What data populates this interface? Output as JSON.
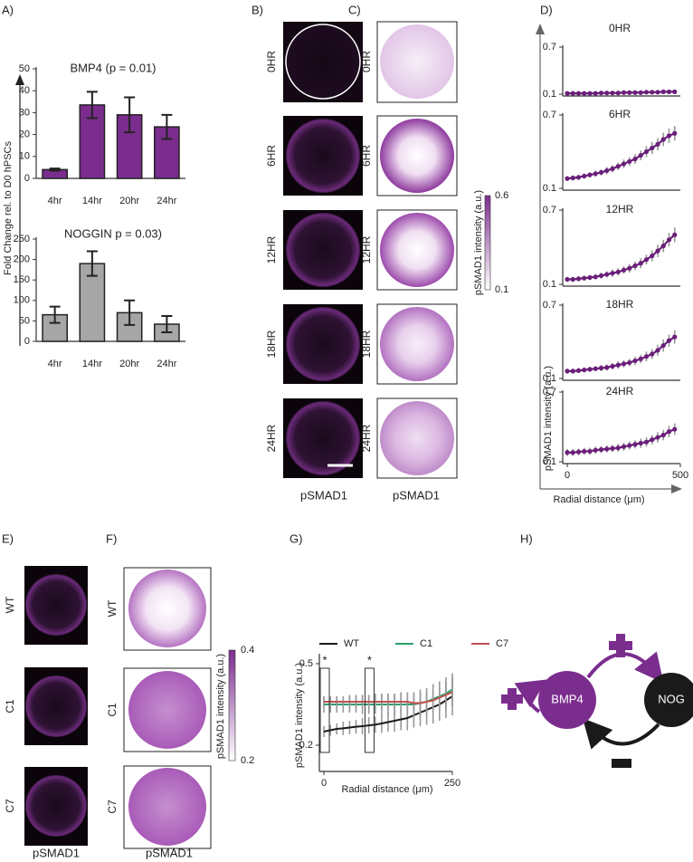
{
  "figure": {
    "panel_labels": [
      "A)",
      "B)",
      "C)",
      "D)",
      "E)",
      "F)",
      "G)",
      "H)"
    ],
    "panel_b": {
      "rows": [
        "0HR",
        "6HR",
        "12HR",
        "18HR",
        "24HR"
      ],
      "caption": "pSMAD1"
    },
    "panel_c": {
      "rows": [
        "0HR",
        "6HR",
        "12HR",
        "18HR",
        "24HR"
      ],
      "caption": "pSMAD1",
      "colorbar": {
        "label": "pSMAD1 intensity (a.u.)",
        "ticks": [
          0.6,
          0.1
        ]
      }
    },
    "panel_e": {
      "rows": [
        "WT",
        "C1",
        "C7"
      ],
      "caption": "pSMAD1"
    },
    "panel_f": {
      "rows": [
        "WT",
        "C1",
        "C7"
      ],
      "caption": "pSMAD1",
      "colorbar": {
        "label": "pSMAD1 intensity (a.u.)",
        "ticks": [
          0.4,
          0.2
        ]
      }
    },
    "panel_h": {
      "nodes": [
        "BMP4",
        "NOG"
      ]
    }
  },
  "chart_data": [
    {
      "type": "bar",
      "title": "BMP4 (p = 0.01)",
      "ylabel": "Fold Change rel. to D0 hPSCs",
      "categories": [
        "4hr",
        "14hr",
        "20hr",
        "24hr"
      ],
      "values": [
        4,
        33.5,
        29,
        23.5
      ],
      "errors": [
        0.5,
        6,
        8,
        5.5
      ],
      "color": "#7b2d8e",
      "ylim": [
        0,
        50
      ],
      "yticks": [
        0,
        10,
        20,
        30,
        40,
        50
      ]
    },
    {
      "type": "bar",
      "title": "NOGGIN p = 0.03)",
      "categories": [
        "4hr",
        "14hr",
        "20hr",
        "24hr"
      ],
      "values": [
        65,
        190,
        70,
        42
      ],
      "errors": [
        20,
        30,
        30,
        20
      ],
      "color": "#a6a6a6",
      "ylim": [
        0,
        250
      ],
      "yticks": [
        0,
        50,
        100,
        150,
        200,
        250
      ]
    },
    {
      "type": "line",
      "title": "0HR",
      "x": [
        0,
        25,
        50,
        75,
        100,
        125,
        150,
        175,
        200,
        225,
        250,
        275,
        300,
        325,
        350,
        375,
        400,
        425,
        450,
        475
      ],
      "xlim": [
        0,
        500
      ],
      "ylim": [
        0.1,
        0.7
      ],
      "yticks": [
        0.1,
        0.7
      ],
      "series": [
        {
          "color": "#6a1f7a",
          "values": [
            0.11,
            0.11,
            0.11,
            0.11,
            0.11,
            0.11,
            0.115,
            0.115,
            0.115,
            0.115,
            0.12,
            0.12,
            0.12,
            0.12,
            0.125,
            0.125,
            0.125,
            0.13,
            0.13,
            0.13
          ],
          "errors": [
            0.01,
            0.01,
            0.01,
            0.01,
            0.01,
            0.01,
            0.01,
            0.01,
            0.01,
            0.01,
            0.01,
            0.01,
            0.01,
            0.01,
            0.01,
            0.01,
            0.01,
            0.01,
            0.01,
            0.01
          ]
        }
      ]
    },
    {
      "type": "line",
      "title": "6HR",
      "x": [
        0,
        25,
        50,
        75,
        100,
        125,
        150,
        175,
        200,
        225,
        250,
        275,
        300,
        325,
        350,
        375,
        400,
        425,
        450,
        475
      ],
      "xlim": [
        0,
        500
      ],
      "ylim": [
        0.1,
        0.7
      ],
      "yticks": [
        0.1,
        0.7
      ],
      "series": [
        {
          "color": "#6a1f7a",
          "values": [
            0.18,
            0.185,
            0.19,
            0.2,
            0.21,
            0.22,
            0.23,
            0.245,
            0.26,
            0.28,
            0.3,
            0.32,
            0.34,
            0.37,
            0.4,
            0.43,
            0.46,
            0.5,
            0.53,
            0.55
          ],
          "errors": [
            0.02,
            0.02,
            0.02,
            0.02,
            0.02,
            0.025,
            0.025,
            0.03,
            0.03,
            0.03,
            0.035,
            0.035,
            0.04,
            0.04,
            0.045,
            0.05,
            0.05,
            0.055,
            0.06,
            0.06
          ]
        }
      ]
    },
    {
      "type": "line",
      "title": "12HR",
      "x": [
        0,
        25,
        50,
        75,
        100,
        125,
        150,
        175,
        200,
        225,
        250,
        275,
        300,
        325,
        350,
        375,
        400,
        425,
        450,
        475
      ],
      "xlim": [
        0,
        500
      ],
      "ylim": [
        0.1,
        0.7
      ],
      "yticks": [
        0.1,
        0.7
      ],
      "series": [
        {
          "color": "#6a1f7a",
          "values": [
            0.14,
            0.14,
            0.145,
            0.15,
            0.155,
            0.16,
            0.17,
            0.18,
            0.19,
            0.2,
            0.215,
            0.23,
            0.25,
            0.27,
            0.3,
            0.33,
            0.37,
            0.41,
            0.46,
            0.5
          ],
          "errors": [
            0.02,
            0.02,
            0.02,
            0.02,
            0.02,
            0.02,
            0.025,
            0.025,
            0.03,
            0.03,
            0.03,
            0.035,
            0.035,
            0.04,
            0.04,
            0.045,
            0.05,
            0.05,
            0.055,
            0.06
          ]
        }
      ]
    },
    {
      "type": "line",
      "title": "18HR",
      "x": [
        0,
        25,
        50,
        75,
        100,
        125,
        150,
        175,
        200,
        225,
        250,
        275,
        300,
        325,
        350,
        375,
        400,
        425,
        450,
        475
      ],
      "xlim": [
        0,
        500
      ],
      "ylim": [
        0.1,
        0.7
      ],
      "yticks": [
        0.1,
        0.7
      ],
      "series": [
        {
          "color": "#6a1f7a",
          "values": [
            0.16,
            0.16,
            0.165,
            0.17,
            0.175,
            0.18,
            0.185,
            0.19,
            0.2,
            0.21,
            0.22,
            0.23,
            0.245,
            0.26,
            0.28,
            0.3,
            0.33,
            0.37,
            0.41,
            0.44
          ],
          "errors": [
            0.02,
            0.02,
            0.02,
            0.02,
            0.02,
            0.02,
            0.025,
            0.025,
            0.025,
            0.03,
            0.03,
            0.03,
            0.035,
            0.035,
            0.04,
            0.04,
            0.045,
            0.05,
            0.05,
            0.055
          ]
        }
      ]
    },
    {
      "type": "line",
      "title": "24HR",
      "ylabel": "pSMAD1 intensity (a.u.)",
      "xlabel": "Radial distance (μm)",
      "x": [
        0,
        25,
        50,
        75,
        100,
        125,
        150,
        175,
        200,
        225,
        250,
        275,
        300,
        325,
        350,
        375,
        400,
        425,
        450,
        475
      ],
      "xlim": [
        0,
        500
      ],
      "xticks": [
        0,
        500
      ],
      "ylim": [
        0.1,
        0.7
      ],
      "yticks": [
        0.1,
        0.7
      ],
      "series": [
        {
          "color": "#6a1f7a",
          "values": [
            0.18,
            0.18,
            0.185,
            0.19,
            0.19,
            0.2,
            0.205,
            0.21,
            0.215,
            0.22,
            0.23,
            0.24,
            0.25,
            0.26,
            0.27,
            0.29,
            0.31,
            0.33,
            0.36,
            0.38
          ],
          "errors": [
            0.03,
            0.03,
            0.03,
            0.03,
            0.03,
            0.03,
            0.03,
            0.03,
            0.03,
            0.035,
            0.035,
            0.035,
            0.035,
            0.04,
            0.04,
            0.04,
            0.045,
            0.045,
            0.05,
            0.05
          ]
        }
      ]
    },
    {
      "type": "line",
      "ylabel": "pSMAD1 intensity (a.u.)",
      "xlabel": "Radial distance (μm)",
      "annotations": [
        "*",
        "*"
      ],
      "x": [
        0,
        12.5,
        25,
        37.5,
        50,
        62.5,
        75,
        87.5,
        100,
        112.5,
        125,
        137.5,
        150,
        162.5,
        175,
        187.5,
        200,
        212.5,
        225,
        237.5,
        250
      ],
      "xlim": [
        0,
        250
      ],
      "xticks": [
        0,
        250
      ],
      "ylim": [
        0.11,
        0.53
      ],
      "yticks": [
        0.2,
        0.5
      ],
      "series": [
        {
          "name": "WT",
          "color": "#1a1a1a",
          "values": [
            0.25,
            0.255,
            0.26,
            0.262,
            0.265,
            0.268,
            0.27,
            0.273,
            0.276,
            0.28,
            0.285,
            0.29,
            0.295,
            0.3,
            0.31,
            0.32,
            0.33,
            0.34,
            0.35,
            0.365,
            0.38
          ],
          "errors": [
            0.02,
            0.02,
            0.02,
            0.025,
            0.025,
            0.025,
            0.03,
            0.03,
            0.03,
            0.035,
            0.035,
            0.04,
            0.04,
            0.045,
            0.045,
            0.05,
            0.055,
            0.06,
            0.06,
            0.065,
            0.07
          ]
        },
        {
          "name": "C1",
          "color": "#2a9d6b",
          "values": [
            0.35,
            0.35,
            0.35,
            0.35,
            0.35,
            0.35,
            0.35,
            0.35,
            0.35,
            0.35,
            0.35,
            0.35,
            0.35,
            0.35,
            0.35,
            0.355,
            0.36,
            0.37,
            0.38,
            0.39,
            0.405
          ],
          "errors": [
            0.03,
            0.03,
            0.03,
            0.03,
            0.03,
            0.03,
            0.035,
            0.035,
            0.035,
            0.035,
            0.04,
            0.04,
            0.04,
            0.045,
            0.045,
            0.05,
            0.05,
            0.055,
            0.055,
            0.06,
            0.06
          ]
        },
        {
          "name": "C7",
          "color": "#c0504d",
          "values": [
            0.36,
            0.36,
            0.36,
            0.36,
            0.36,
            0.36,
            0.36,
            0.36,
            0.36,
            0.36,
            0.36,
            0.36,
            0.36,
            0.36,
            0.355,
            0.355,
            0.36,
            0.365,
            0.375,
            0.385,
            0.395
          ],
          "errors": [
            0.02,
            0.02,
            0.02,
            0.02,
            0.025,
            0.025,
            0.025,
            0.025,
            0.03,
            0.03,
            0.03,
            0.03,
            0.035,
            0.035,
            0.035,
            0.04,
            0.04,
            0.045,
            0.045,
            0.05,
            0.05
          ]
        }
      ]
    }
  ]
}
